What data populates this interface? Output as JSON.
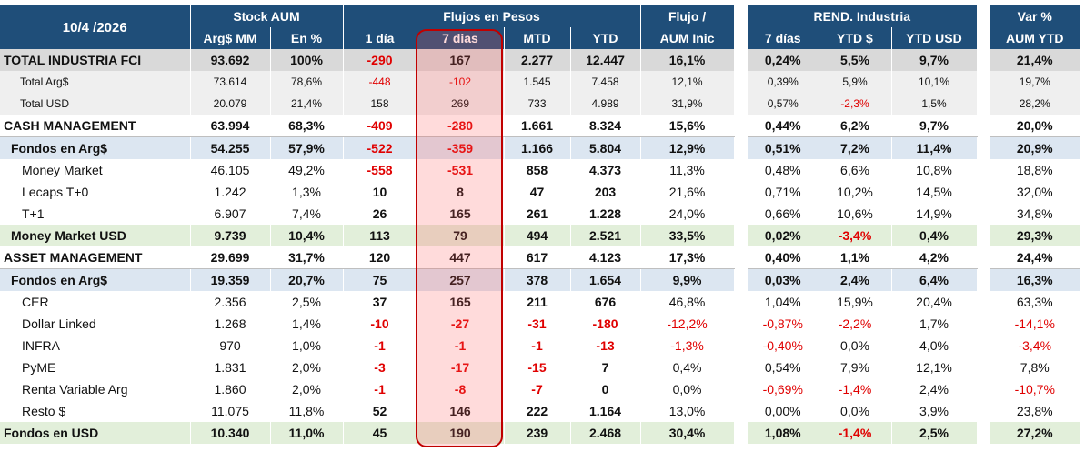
{
  "header": {
    "date": "10/4 /2026",
    "stock_aum": "Stock AUM",
    "flujos": "Flujos en Pesos",
    "flujo_aum_1": "Flujo /",
    "flujo_aum_2": "AUM Inic",
    "rend": "REND. Industria",
    "var_1": "Var %",
    "var_2": "AUM YTD",
    "col_arg_mm": "Arg$ MM",
    "col_en_pct": "En %",
    "col_1dia": "1 día",
    "col_7dias": "7 dias",
    "col_mtd": "MTD",
    "col_ytd": "YTD",
    "col_r7": "7 días",
    "col_rytd": "YTD $",
    "col_rytdusd": "YTD USD"
  },
  "rows": [
    {
      "label": "TOTAL INDUSTRIA FCI",
      "arg": "93.692",
      "pct": "100%",
      "d1": "-290",
      "d7": "167",
      "mtd": "2.277",
      "ytd": "12.447",
      "flujo": "16,1%",
      "r7": "0,24%",
      "rytd": "5,5%",
      "rusd": "9,7%",
      "var": "21,4%"
    },
    {
      "label": "Total Arg$",
      "arg": "73.614",
      "pct": "78,6%",
      "d1": "-448",
      "d7": "-102",
      "mtd": "1.545",
      "ytd": "7.458",
      "flujo": "12,1%",
      "r7": "0,39%",
      "rytd": "5,9%",
      "rusd": "10,1%",
      "var": "19,7%"
    },
    {
      "label": "Total USD",
      "arg": "20.079",
      "pct": "21,4%",
      "d1": "158",
      "d7": "269",
      "mtd": "733",
      "ytd": "4.989",
      "flujo": "31,9%",
      "r7": "0,57%",
      "rytd": "-2,3%",
      "rusd": "1,5%",
      "var": "28,2%"
    },
    {
      "label": "CASH MANAGEMENT",
      "arg": "63.994",
      "pct": "68,3%",
      "d1": "-409",
      "d7": "-280",
      "mtd": "1.661",
      "ytd": "8.324",
      "flujo": "15,6%",
      "r7": "0,44%",
      "rytd": "6,2%",
      "rusd": "9,7%",
      "var": "20,0%"
    },
    {
      "label": "Fondos en Arg$",
      "arg": "54.255",
      "pct": "57,9%",
      "d1": "-522",
      "d7": "-359",
      "mtd": "1.166",
      "ytd": "5.804",
      "flujo": "12,9%",
      "r7": "0,51%",
      "rytd": "7,2%",
      "rusd": "11,4%",
      "var": "20,9%"
    },
    {
      "label": "Money Market",
      "arg": "46.105",
      "pct": "49,2%",
      "d1": "-558",
      "d7": "-531",
      "mtd": "858",
      "ytd": "4.373",
      "flujo": "11,3%",
      "r7": "0,48%",
      "rytd": "6,6%",
      "rusd": "10,8%",
      "var": "18,8%"
    },
    {
      "label": "Lecaps T+0",
      "arg": "1.242",
      "pct": "1,3%",
      "d1": "10",
      "d7": "8",
      "mtd": "47",
      "ytd": "203",
      "flujo": "21,6%",
      "r7": "0,71%",
      "rytd": "10,2%",
      "rusd": "14,5%",
      "var": "32,0%"
    },
    {
      "label": "T+1",
      "arg": "6.907",
      "pct": "7,4%",
      "d1": "26",
      "d7": "165",
      "mtd": "261",
      "ytd": "1.228",
      "flujo": "24,0%",
      "r7": "0,66%",
      "rytd": "10,6%",
      "rusd": "14,9%",
      "var": "34,8%"
    },
    {
      "label": "Money Market USD",
      "arg": "9.739",
      "pct": "10,4%",
      "d1": "113",
      "d7": "79",
      "mtd": "494",
      "ytd": "2.521",
      "flujo": "33,5%",
      "r7": "0,02%",
      "rytd": "-3,4%",
      "rusd": "0,4%",
      "var": "29,3%"
    },
    {
      "label": "ASSET MANAGEMENT",
      "arg": "29.699",
      "pct": "31,7%",
      "d1": "120",
      "d7": "447",
      "mtd": "617",
      "ytd": "4.123",
      "flujo": "17,3%",
      "r7": "0,40%",
      "rytd": "1,1%",
      "rusd": "4,2%",
      "var": "24,4%"
    },
    {
      "label": "Fondos en Arg$",
      "arg": "19.359",
      "pct": "20,7%",
      "d1": "75",
      "d7": "257",
      "mtd": "378",
      "ytd": "1.654",
      "flujo": "9,9%",
      "r7": "0,03%",
      "rytd": "2,4%",
      "rusd": "6,4%",
      "var": "16,3%"
    },
    {
      "label": "CER",
      "arg": "2.356",
      "pct": "2,5%",
      "d1": "37",
      "d7": "165",
      "mtd": "211",
      "ytd": "676",
      "flujo": "46,8%",
      "r7": "1,04%",
      "rytd": "15,9%",
      "rusd": "20,4%",
      "var": "63,3%"
    },
    {
      "label": "Dollar Linked",
      "arg": "1.268",
      "pct": "1,4%",
      "d1": "-10",
      "d7": "-27",
      "mtd": "-31",
      "ytd": "-180",
      "flujo": "-12,2%",
      "r7": "-0,87%",
      "rytd": "-2,2%",
      "rusd": "1,7%",
      "var": "-14,1%"
    },
    {
      "label": "INFRA",
      "arg": "970",
      "pct": "1,0%",
      "d1": "-1",
      "d7": "-1",
      "mtd": "-1",
      "ytd": "-13",
      "flujo": "-1,3%",
      "r7": "-0,40%",
      "rytd": "0,0%",
      "rusd": "4,0%",
      "var": "-3,4%"
    },
    {
      "label": "PyME",
      "arg": "1.831",
      "pct": "2,0%",
      "d1": "-3",
      "d7": "-17",
      "mtd": "-15",
      "ytd": "7",
      "flujo": "0,4%",
      "r7": "0,54%",
      "rytd": "7,9%",
      "rusd": "12,1%",
      "var": "7,8%"
    },
    {
      "label": "Renta Variable Arg",
      "arg": "1.860",
      "pct": "2,0%",
      "d1": "-1",
      "d7": "-8",
      "mtd": "-7",
      "ytd": "0",
      "flujo": "0,0%",
      "r7": "-0,69%",
      "rytd": "-1,4%",
      "rusd": "2,4%",
      "var": "-10,7%"
    },
    {
      "label": "Resto $",
      "arg": "11.075",
      "pct": "11,8%",
      "d1": "52",
      "d7": "146",
      "mtd": "222",
      "ytd": "1.164",
      "flujo": "13,0%",
      "r7": "0,00%",
      "rytd": "0,0%",
      "rusd": "3,9%",
      "var": "23,8%"
    },
    {
      "label": "Fondos en USD",
      "arg": "10.340",
      "pct": "11,0%",
      "d1": "45",
      "d7": "190",
      "mtd": "239",
      "ytd": "2.468",
      "flujo": "30,4%",
      "r7": "1,08%",
      "rytd": "-1,4%",
      "rusd": "2,5%",
      "var": "27,2%"
    }
  ]
}
